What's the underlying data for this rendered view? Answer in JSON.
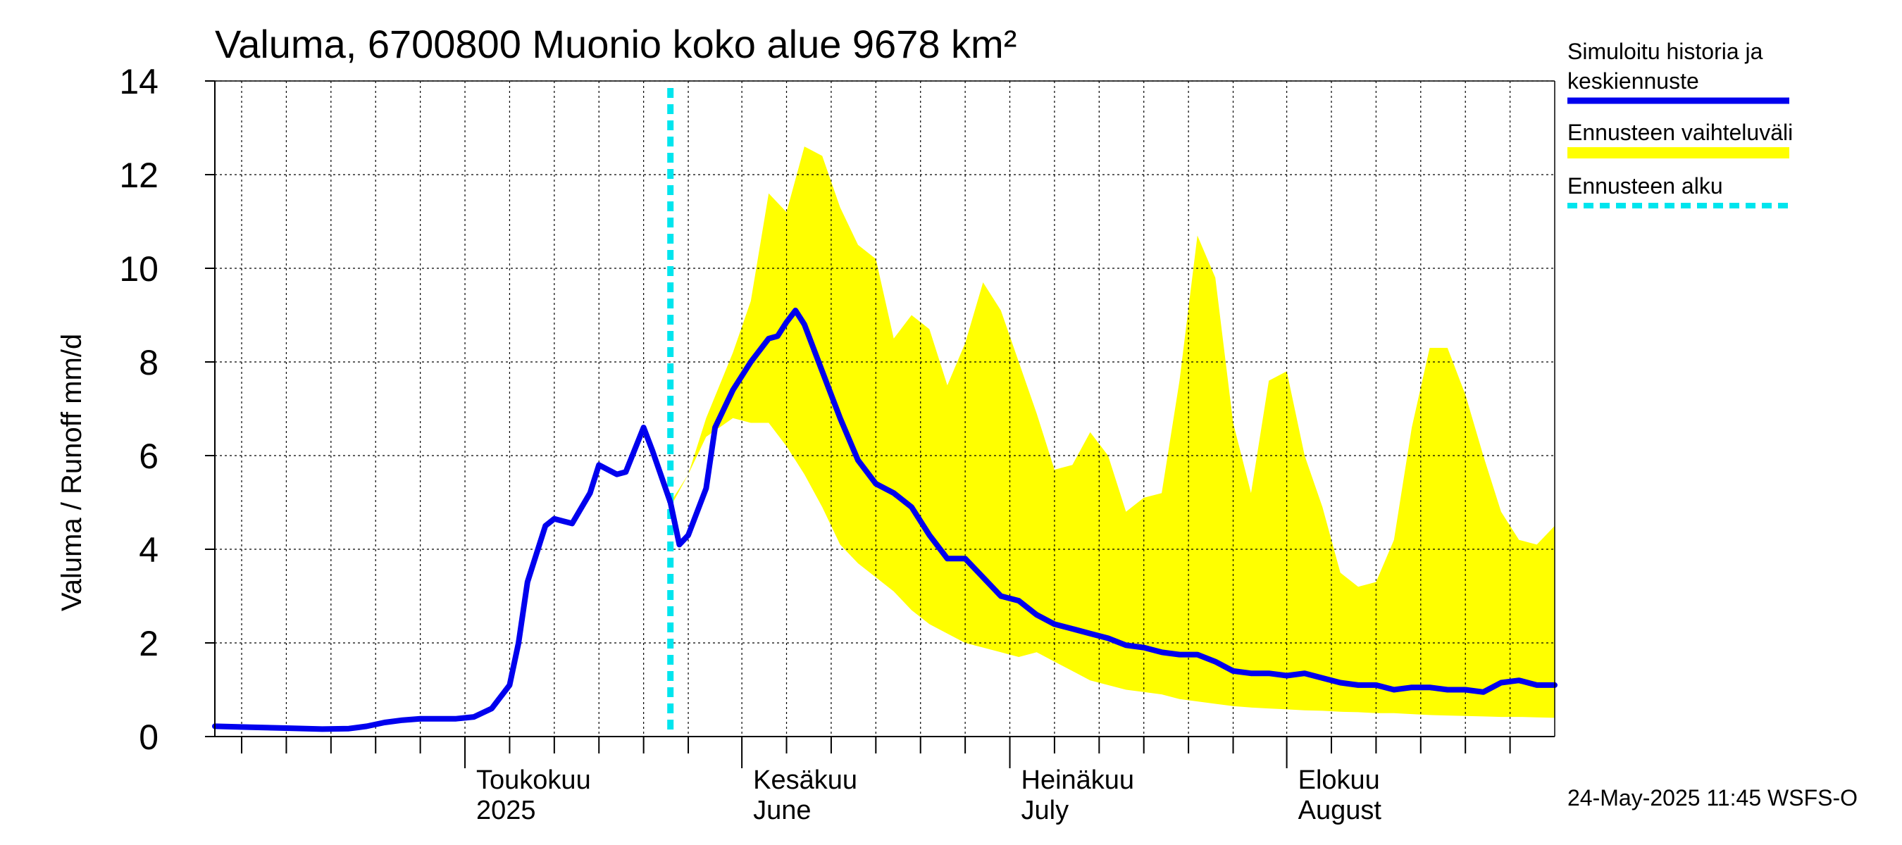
{
  "chart_data": {
    "type": "line",
    "title": "Valuma, 6700800 Muonio koko alue 9678 km²",
    "ylabel": "Valuma / Runoff    mm/d",
    "ylim": [
      0,
      14
    ],
    "yticks": [
      0,
      2,
      4,
      6,
      8,
      10,
      12,
      14
    ],
    "xlim": [
      "2025-04-03",
      "2025-08-31"
    ],
    "grid": true,
    "legend_placement": "right",
    "month_labels": [
      {
        "date": "2025-05-01",
        "fi": "Toukokuu",
        "en": "2025"
      },
      {
        "date": "2025-06-01",
        "fi": "Kesäkuu",
        "en": "June"
      },
      {
        "date": "2025-07-01",
        "fi": "Heinäkuu",
        "en": "July"
      },
      {
        "date": "2025-08-01",
        "fi": "Elokuu",
        "en": "August"
      }
    ],
    "forecast_start": "2025-05-24",
    "series": [
      {
        "name": "Simuloitu historia ja keskiennuste",
        "color": "#0000ee",
        "points": [
          [
            "2025-04-03",
            0.22
          ],
          [
            "2025-04-07",
            0.2
          ],
          [
            "2025-04-11",
            0.18
          ],
          [
            "2025-04-15",
            0.16
          ],
          [
            "2025-04-18",
            0.17
          ],
          [
            "2025-04-20",
            0.22
          ],
          [
            "2025-04-22",
            0.3
          ],
          [
            "2025-04-24",
            0.35
          ],
          [
            "2025-04-26",
            0.38
          ],
          [
            "2025-04-28",
            0.38
          ],
          [
            "2025-04-30",
            0.38
          ],
          [
            "2025-05-02",
            0.42
          ],
          [
            "2025-05-04",
            0.6
          ],
          [
            "2025-05-06",
            1.1
          ],
          [
            "2025-05-07",
            2.0
          ],
          [
            "2025-05-08",
            3.3
          ],
          [
            "2025-05-10",
            4.5
          ],
          [
            "2025-05-11",
            4.65
          ],
          [
            "2025-05-12",
            4.6
          ],
          [
            "2025-05-13",
            4.55
          ],
          [
            "2025-05-15",
            5.2
          ],
          [
            "2025-05-16",
            5.8
          ],
          [
            "2025-05-18",
            5.6
          ],
          [
            "2025-05-19",
            5.65
          ],
          [
            "2025-05-21",
            6.6
          ],
          [
            "2025-05-22",
            6.1
          ],
          [
            "2025-05-24",
            5.0
          ],
          [
            "2025-05-25",
            4.1
          ],
          [
            "2025-05-26",
            4.3
          ],
          [
            "2025-05-28",
            5.3
          ],
          [
            "2025-05-29",
            6.6
          ],
          [
            "2025-05-31",
            7.4
          ],
          [
            "2025-06-02",
            8.0
          ],
          [
            "2025-06-04",
            8.5
          ],
          [
            "2025-06-05",
            8.55
          ],
          [
            "2025-06-06",
            8.85
          ],
          [
            "2025-06-07",
            9.1
          ],
          [
            "2025-06-08",
            8.8
          ],
          [
            "2025-06-10",
            7.8
          ],
          [
            "2025-06-12",
            6.8
          ],
          [
            "2025-06-14",
            5.9
          ],
          [
            "2025-06-16",
            5.4
          ],
          [
            "2025-06-18",
            5.2
          ],
          [
            "2025-06-20",
            4.9
          ],
          [
            "2025-06-22",
            4.3
          ],
          [
            "2025-06-24",
            3.8
          ],
          [
            "2025-06-26",
            3.8
          ],
          [
            "2025-06-28",
            3.4
          ],
          [
            "2025-06-30",
            3.0
          ],
          [
            "2025-07-02",
            2.9
          ],
          [
            "2025-07-04",
            2.6
          ],
          [
            "2025-07-06",
            2.4
          ],
          [
            "2025-07-08",
            2.3
          ],
          [
            "2025-07-10",
            2.2
          ],
          [
            "2025-07-12",
            2.1
          ],
          [
            "2025-07-14",
            1.95
          ],
          [
            "2025-07-16",
            1.9
          ],
          [
            "2025-07-18",
            1.8
          ],
          [
            "2025-07-20",
            1.75
          ],
          [
            "2025-07-22",
            1.75
          ],
          [
            "2025-07-24",
            1.6
          ],
          [
            "2025-07-26",
            1.4
          ],
          [
            "2025-07-28",
            1.35
          ],
          [
            "2025-07-30",
            1.35
          ],
          [
            "2025-08-01",
            1.3
          ],
          [
            "2025-08-03",
            1.35
          ],
          [
            "2025-08-05",
            1.25
          ],
          [
            "2025-08-07",
            1.15
          ],
          [
            "2025-08-09",
            1.1
          ],
          [
            "2025-08-11",
            1.1
          ],
          [
            "2025-08-13",
            1.0
          ],
          [
            "2025-08-15",
            1.05
          ],
          [
            "2025-08-17",
            1.05
          ],
          [
            "2025-08-19",
            1.0
          ],
          [
            "2025-08-21",
            1.0
          ],
          [
            "2025-08-23",
            0.95
          ],
          [
            "2025-08-25",
            1.15
          ],
          [
            "2025-08-27",
            1.2
          ],
          [
            "2025-08-29",
            1.1
          ],
          [
            "2025-08-31",
            1.1
          ]
        ]
      },
      {
        "name": "Ennusteen vaihteluväli",
        "color": "#ffff00",
        "upper": [
          [
            "2025-05-24",
            5.0
          ],
          [
            "2025-05-26",
            5.6
          ],
          [
            "2025-05-28",
            6.8
          ],
          [
            "2025-05-31",
            8.2
          ],
          [
            "2025-06-02",
            9.3
          ],
          [
            "2025-06-04",
            11.6
          ],
          [
            "2025-06-06",
            11.2
          ],
          [
            "2025-06-08",
            12.6
          ],
          [
            "2025-06-10",
            12.4
          ],
          [
            "2025-06-12",
            11.3
          ],
          [
            "2025-06-14",
            10.5
          ],
          [
            "2025-06-16",
            10.2
          ],
          [
            "2025-06-18",
            8.5
          ],
          [
            "2025-06-20",
            9.0
          ],
          [
            "2025-06-22",
            8.7
          ],
          [
            "2025-06-24",
            7.5
          ],
          [
            "2025-06-26",
            8.4
          ],
          [
            "2025-06-28",
            9.7
          ],
          [
            "2025-06-30",
            9.1
          ],
          [
            "2025-07-02",
            8.0
          ],
          [
            "2025-07-04",
            6.9
          ],
          [
            "2025-07-06",
            5.7
          ],
          [
            "2025-07-08",
            5.8
          ],
          [
            "2025-07-10",
            6.5
          ],
          [
            "2025-07-12",
            6.0
          ],
          [
            "2025-07-14",
            4.8
          ],
          [
            "2025-07-16",
            5.1
          ],
          [
            "2025-07-18",
            5.2
          ],
          [
            "2025-07-20",
            7.6
          ],
          [
            "2025-07-22",
            10.7
          ],
          [
            "2025-07-24",
            9.8
          ],
          [
            "2025-07-26",
            6.7
          ],
          [
            "2025-07-28",
            5.2
          ],
          [
            "2025-07-30",
            7.6
          ],
          [
            "2025-08-01",
            7.8
          ],
          [
            "2025-08-03",
            6.0
          ],
          [
            "2025-08-05",
            4.9
          ],
          [
            "2025-08-07",
            3.5
          ],
          [
            "2025-08-09",
            3.2
          ],
          [
            "2025-08-11",
            3.3
          ],
          [
            "2025-08-13",
            4.2
          ],
          [
            "2025-08-15",
            6.6
          ],
          [
            "2025-08-17",
            8.3
          ],
          [
            "2025-08-19",
            8.3
          ],
          [
            "2025-08-21",
            7.3
          ],
          [
            "2025-08-23",
            6.0
          ],
          [
            "2025-08-25",
            4.8
          ],
          [
            "2025-08-27",
            4.2
          ],
          [
            "2025-08-29",
            4.1
          ],
          [
            "2025-08-31",
            4.5
          ]
        ],
        "lower": [
          [
            "2025-05-24",
            4.9
          ],
          [
            "2025-05-26",
            5.6
          ],
          [
            "2025-05-28",
            6.4
          ],
          [
            "2025-05-31",
            6.8
          ],
          [
            "2025-06-02",
            6.7
          ],
          [
            "2025-06-04",
            6.7
          ],
          [
            "2025-06-06",
            6.2
          ],
          [
            "2025-06-08",
            5.6
          ],
          [
            "2025-06-10",
            4.9
          ],
          [
            "2025-06-12",
            4.1
          ],
          [
            "2025-06-14",
            3.7
          ],
          [
            "2025-06-16",
            3.4
          ],
          [
            "2025-06-18",
            3.1
          ],
          [
            "2025-06-20",
            2.7
          ],
          [
            "2025-06-22",
            2.4
          ],
          [
            "2025-06-24",
            2.2
          ],
          [
            "2025-06-26",
            2.0
          ],
          [
            "2025-06-28",
            1.9
          ],
          [
            "2025-06-30",
            1.8
          ],
          [
            "2025-07-02",
            1.7
          ],
          [
            "2025-07-04",
            1.8
          ],
          [
            "2025-07-06",
            1.6
          ],
          [
            "2025-07-08",
            1.4
          ],
          [
            "2025-07-10",
            1.2
          ],
          [
            "2025-07-12",
            1.1
          ],
          [
            "2025-07-14",
            1.0
          ],
          [
            "2025-07-16",
            0.95
          ],
          [
            "2025-07-18",
            0.9
          ],
          [
            "2025-07-20",
            0.8
          ],
          [
            "2025-07-22",
            0.75
          ],
          [
            "2025-07-24",
            0.7
          ],
          [
            "2025-07-26",
            0.65
          ],
          [
            "2025-07-28",
            0.62
          ],
          [
            "2025-07-30",
            0.6
          ],
          [
            "2025-08-01",
            0.58
          ],
          [
            "2025-08-03",
            0.56
          ],
          [
            "2025-08-05",
            0.55
          ],
          [
            "2025-08-07",
            0.53
          ],
          [
            "2025-08-09",
            0.52
          ],
          [
            "2025-08-11",
            0.5
          ],
          [
            "2025-08-13",
            0.5
          ],
          [
            "2025-08-15",
            0.48
          ],
          [
            "2025-08-17",
            0.46
          ],
          [
            "2025-08-19",
            0.45
          ],
          [
            "2025-08-21",
            0.44
          ],
          [
            "2025-08-23",
            0.43
          ],
          [
            "2025-08-25",
            0.42
          ],
          [
            "2025-08-27",
            0.42
          ],
          [
            "2025-08-29",
            0.41
          ],
          [
            "2025-08-31",
            0.4
          ]
        ]
      },
      {
        "name": "Ennusteen alku",
        "color": "#00e5ee"
      }
    ]
  },
  "legend": {
    "sim_line1": "Simuloitu historia ja",
    "sim_line2": "keskiennuste",
    "range": "Ennusteen vaihteluväli",
    "start": "Ennusteen alku"
  },
  "footer": {
    "timestamp": "24-May-2025 11:45 WSFS-O"
  }
}
